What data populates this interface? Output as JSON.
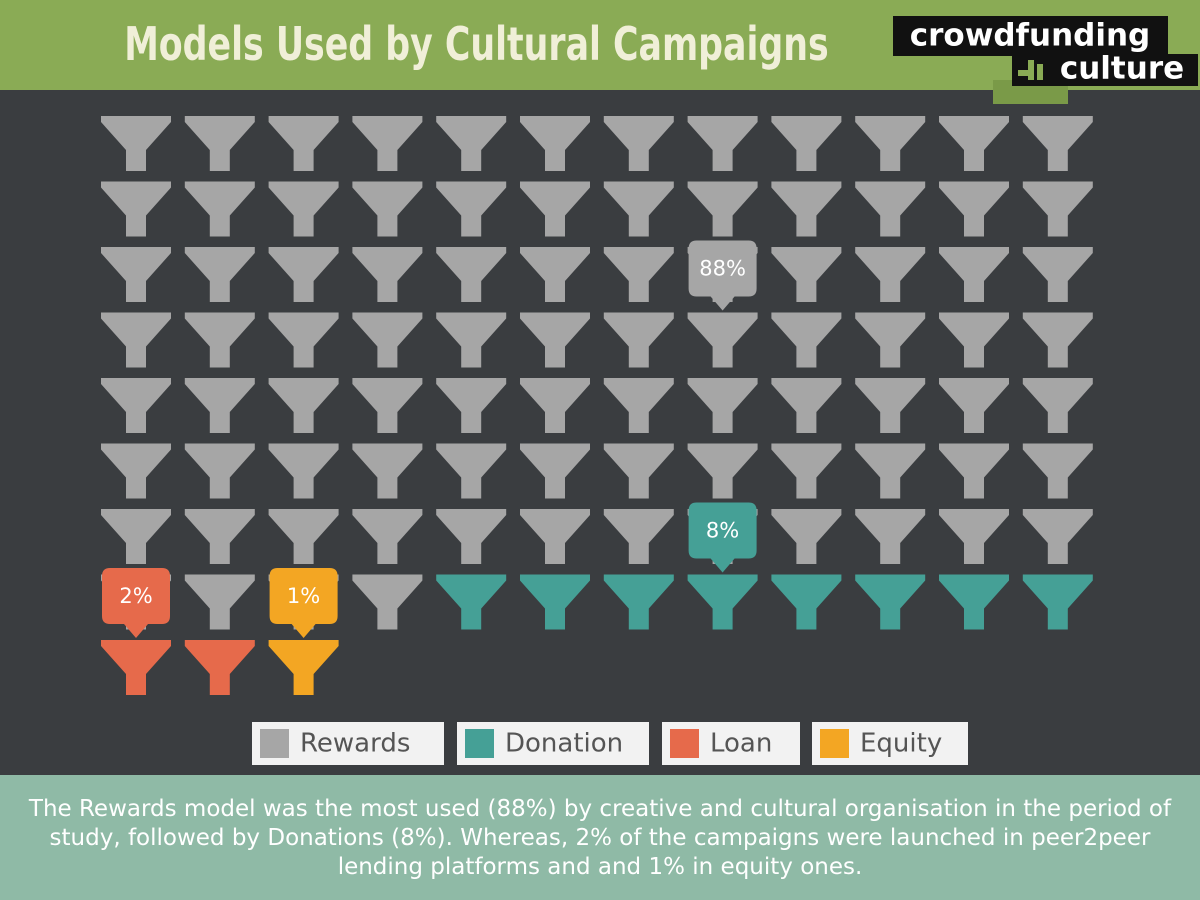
{
  "chart_data": {
    "type": "pictogram",
    "title": "Models Used by Cultural Campaigns",
    "series": [
      {
        "name": "Rewards",
        "color": "#a6a6a6",
        "values": [
          88
        ],
        "value_labels": [
          "88%"
        ]
      },
      {
        "name": "Donation",
        "color": "#45a096",
        "values": [
          8
        ],
        "value_labels": [
          "8%"
        ]
      },
      {
        "name": "Loan",
        "color": "#e66a4b",
        "values": [
          2
        ],
        "value_labels": [
          "2%"
        ]
      },
      {
        "name": "Equity",
        "color": "#f3a623",
        "values": [
          1
        ],
        "value_labels": [
          "1%"
        ]
      }
    ]
  },
  "logo": {
    "line1": "crowdfunding",
    "line2": "culture"
  },
  "caption": "The Rewards model was the most used (88%) by creative and cultural organisation in the period of study, followed by Donations (8%). Whereas, 2% of the campaigns were launched in  peer2peer lending platforms and and 1% in equity ones."
}
